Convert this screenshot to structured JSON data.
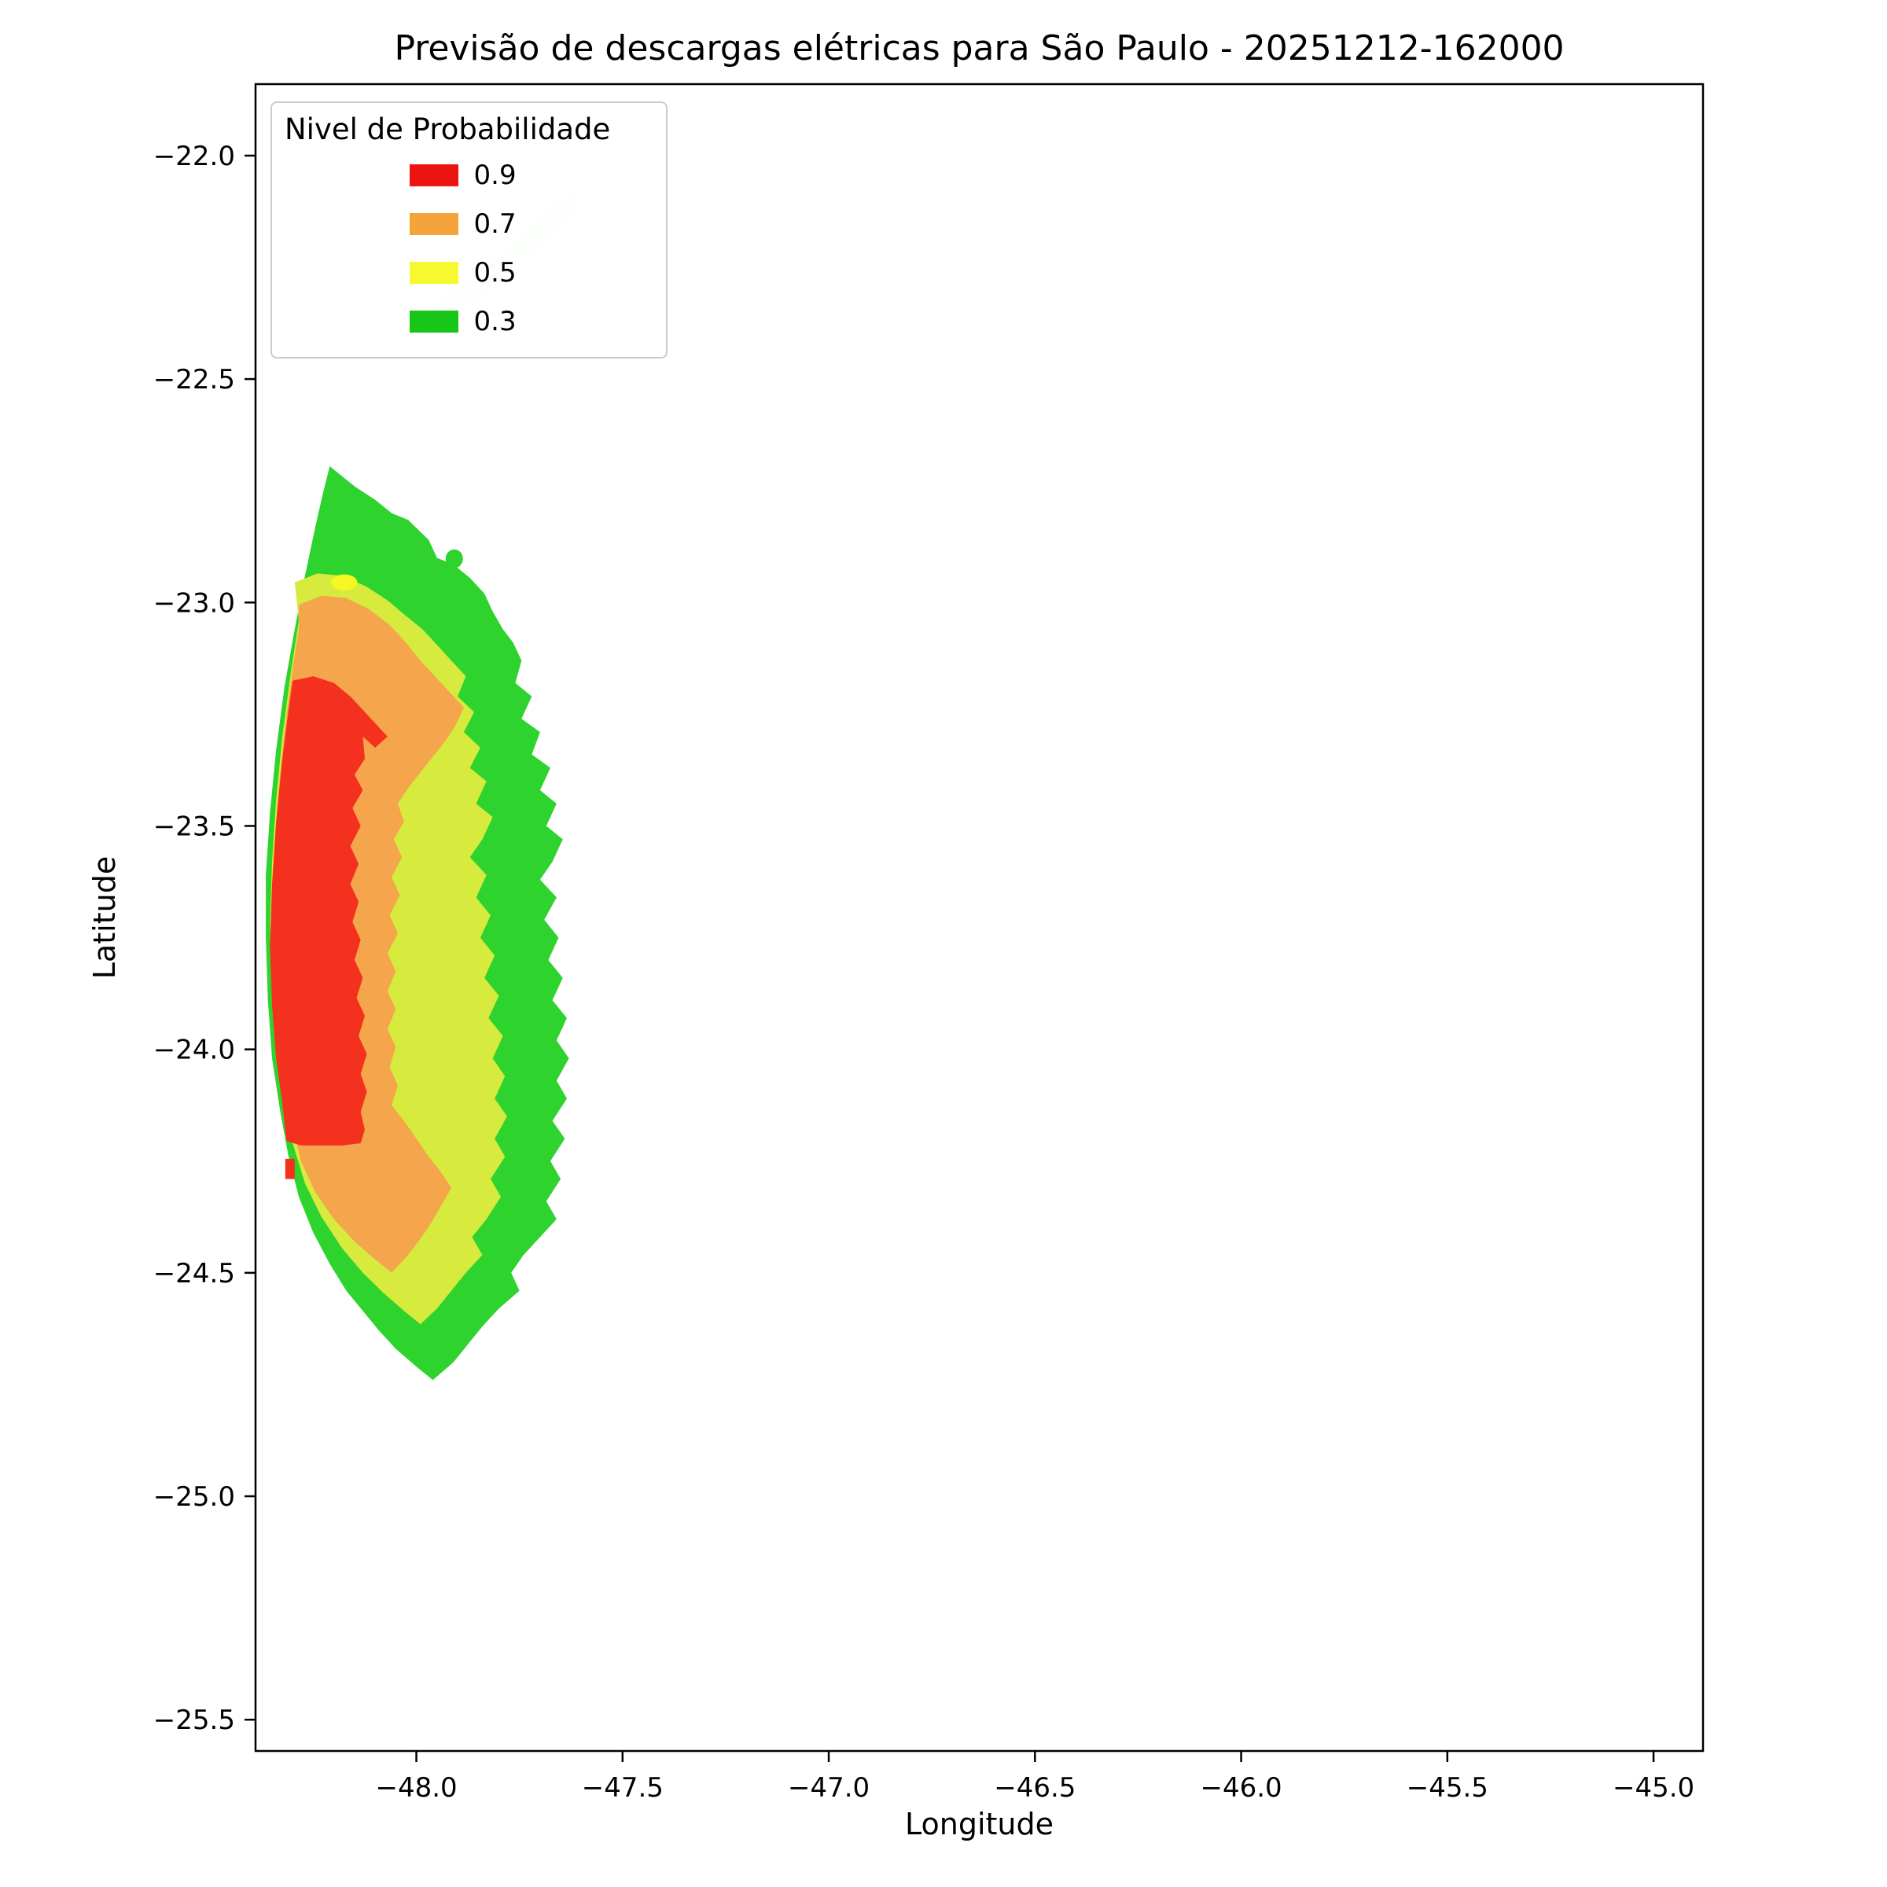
{
  "title": "Previsão de descargas elétricas para São Paulo - 20251212-162000",
  "axes": {
    "xlabel": "Longitude",
    "ylabel": "Latitude"
  },
  "legend": {
    "title": "Nivel de Probabilidade",
    "entries": [
      {
        "label": "0.9",
        "color": "#ec1410"
      },
      {
        "label": "0.7",
        "color": "#f7a33b"
      },
      {
        "label": "0.5",
        "color": "#f8f831"
      },
      {
        "label": "0.3",
        "color": "#17c617"
      }
    ]
  },
  "chart_data": {
    "type": "heatmap",
    "subtype": "filled-contour-probability-map",
    "title": "Previsão de descargas elétricas para São Paulo - 20251212-162000",
    "xlabel": "Longitude",
    "ylabel": "Latitude",
    "grid": false,
    "legend_position": "upper left",
    "xlim": [
      -48.39,
      -44.88
    ],
    "ylim": [
      -25.57,
      -21.84
    ],
    "xticks": [
      -48.0,
      -47.5,
      -47.0,
      -46.5,
      -46.0,
      -45.5,
      -45.0
    ],
    "xtick_labels": [
      "−48.0",
      "−47.5",
      "−47.0",
      "−46.5",
      "−46.0",
      "−45.5",
      "−45.0"
    ],
    "yticks": [
      -22.0,
      -22.5,
      -23.0,
      -23.5,
      -24.0,
      -24.5,
      -25.0,
      -25.5
    ],
    "ytick_labels": [
      "−22.0",
      "−22.5",
      "−23.0",
      "−23.5",
      "−24.0",
      "−24.5",
      "−25.0",
      "−25.5"
    ],
    "levels": [
      0.3,
      0.5,
      0.7,
      0.9
    ],
    "regions": [
      {
        "name": "faint-outlier-patch",
        "level": 0.3,
        "color": "#7ddc7d",
        "opacity": 0.28,
        "shape": "polygon",
        "points": [
          [
            -47.985,
            -22.355
          ],
          [
            -47.9,
            -22.295
          ],
          [
            -47.815,
            -22.235
          ],
          [
            -47.73,
            -22.165
          ],
          [
            -47.655,
            -22.105
          ],
          [
            -47.61,
            -22.075
          ],
          [
            -47.625,
            -22.13
          ],
          [
            -47.69,
            -22.19
          ],
          [
            -47.77,
            -22.255
          ],
          [
            -47.855,
            -22.32
          ],
          [
            -47.94,
            -22.385
          ],
          [
            -47.975,
            -22.4
          ]
        ]
      },
      {
        "name": "region-level-0-3",
        "level": 0.3,
        "color": "#2ed32e",
        "opacity": 1,
        "shape": "polygon",
        "points": [
          [
            -48.21,
            -22.695
          ],
          [
            -48.15,
            -22.74
          ],
          [
            -48.1,
            -22.77
          ],
          [
            -48.06,
            -22.8
          ],
          [
            -48.02,
            -22.815
          ],
          [
            -47.97,
            -22.86
          ],
          [
            -47.95,
            -22.9
          ],
          [
            -47.91,
            -22.915
          ],
          [
            -47.87,
            -22.945
          ],
          [
            -47.835,
            -22.98
          ],
          [
            -47.815,
            -23.02
          ],
          [
            -47.79,
            -23.06
          ],
          [
            -47.765,
            -23.09
          ],
          [
            -47.745,
            -23.13
          ],
          [
            -47.76,
            -23.18
          ],
          [
            -47.72,
            -23.21
          ],
          [
            -47.745,
            -23.26
          ],
          [
            -47.7,
            -23.29
          ],
          [
            -47.72,
            -23.34
          ],
          [
            -47.675,
            -23.37
          ],
          [
            -47.7,
            -23.42
          ],
          [
            -47.66,
            -23.45
          ],
          [
            -47.685,
            -23.5
          ],
          [
            -47.645,
            -23.53
          ],
          [
            -47.67,
            -23.58
          ],
          [
            -47.7,
            -23.62
          ],
          [
            -47.66,
            -23.66
          ],
          [
            -47.69,
            -23.71
          ],
          [
            -47.655,
            -23.75
          ],
          [
            -47.68,
            -23.8
          ],
          [
            -47.645,
            -23.84
          ],
          [
            -47.67,
            -23.89
          ],
          [
            -47.635,
            -23.93
          ],
          [
            -47.66,
            -23.98
          ],
          [
            -47.63,
            -24.02
          ],
          [
            -47.66,
            -24.07
          ],
          [
            -47.635,
            -24.11
          ],
          [
            -47.67,
            -24.16
          ],
          [
            -47.64,
            -24.2
          ],
          [
            -47.675,
            -24.25
          ],
          [
            -47.65,
            -24.29
          ],
          [
            -47.685,
            -24.34
          ],
          [
            -47.66,
            -24.38
          ],
          [
            -47.7,
            -24.42
          ],
          [
            -47.74,
            -24.46
          ],
          [
            -47.77,
            -24.5
          ],
          [
            -47.75,
            -24.54
          ],
          [
            -47.8,
            -24.58
          ],
          [
            -47.84,
            -24.62
          ],
          [
            -47.875,
            -24.66
          ],
          [
            -47.91,
            -24.7
          ],
          [
            -47.96,
            -24.74
          ],
          [
            -48.0,
            -24.71
          ],
          [
            -48.05,
            -24.67
          ],
          [
            -48.09,
            -24.63
          ],
          [
            -48.13,
            -24.585
          ],
          [
            -48.17,
            -24.54
          ],
          [
            -48.21,
            -24.48
          ],
          [
            -48.25,
            -24.41
          ],
          [
            -48.285,
            -24.33
          ],
          [
            -48.31,
            -24.24
          ],
          [
            -48.33,
            -24.14
          ],
          [
            -48.35,
            -24.02
          ],
          [
            -48.36,
            -23.89
          ],
          [
            -48.365,
            -23.75
          ],
          [
            -48.365,
            -23.61
          ],
          [
            -48.355,
            -23.47
          ],
          [
            -48.34,
            -23.33
          ],
          [
            -48.32,
            -23.19
          ],
          [
            -48.295,
            -23.06
          ],
          [
            -48.27,
            -22.94
          ],
          [
            -48.245,
            -22.83
          ],
          [
            -48.225,
            -22.75
          ]
        ]
      },
      {
        "name": "region-level-0-5",
        "level": 0.5,
        "color": "#d7ea3e",
        "opacity": 1,
        "shape": "polygon",
        "points": [
          [
            -48.295,
            -22.955
          ],
          [
            -48.24,
            -22.935
          ],
          [
            -48.18,
            -22.94
          ],
          [
            -48.12,
            -22.965
          ],
          [
            -48.07,
            -22.995
          ],
          [
            -48.025,
            -23.03
          ],
          [
            -47.985,
            -23.06
          ],
          [
            -47.95,
            -23.095
          ],
          [
            -47.915,
            -23.13
          ],
          [
            -47.88,
            -23.165
          ],
          [
            -47.9,
            -23.21
          ],
          [
            -47.86,
            -23.245
          ],
          [
            -47.885,
            -23.29
          ],
          [
            -47.845,
            -23.325
          ],
          [
            -47.87,
            -23.37
          ],
          [
            -47.83,
            -23.4
          ],
          [
            -47.855,
            -23.45
          ],
          [
            -47.815,
            -23.48
          ],
          [
            -47.84,
            -23.53
          ],
          [
            -47.87,
            -23.57
          ],
          [
            -47.83,
            -23.61
          ],
          [
            -47.855,
            -23.66
          ],
          [
            -47.82,
            -23.7
          ],
          [
            -47.845,
            -23.75
          ],
          [
            -47.81,
            -23.79
          ],
          [
            -47.835,
            -23.84
          ],
          [
            -47.8,
            -23.88
          ],
          [
            -47.825,
            -23.93
          ],
          [
            -47.79,
            -23.97
          ],
          [
            -47.815,
            -24.02
          ],
          [
            -47.785,
            -24.06
          ],
          [
            -47.81,
            -24.11
          ],
          [
            -47.78,
            -24.15
          ],
          [
            -47.81,
            -24.2
          ],
          [
            -47.785,
            -24.24
          ],
          [
            -47.82,
            -24.29
          ],
          [
            -47.795,
            -24.33
          ],
          [
            -47.83,
            -24.38
          ],
          [
            -47.865,
            -24.42
          ],
          [
            -47.84,
            -24.46
          ],
          [
            -47.88,
            -24.5
          ],
          [
            -47.915,
            -24.54
          ],
          [
            -47.95,
            -24.58
          ],
          [
            -47.99,
            -24.615
          ],
          [
            -48.03,
            -24.585
          ],
          [
            -48.08,
            -24.545
          ],
          [
            -48.13,
            -24.5
          ],
          [
            -48.18,
            -24.445
          ],
          [
            -48.23,
            -24.375
          ],
          [
            -48.27,
            -24.3
          ],
          [
            -48.3,
            -24.21
          ],
          [
            -48.32,
            -24.11
          ],
          [
            -48.34,
            -23.99
          ],
          [
            -48.35,
            -23.86
          ],
          [
            -48.355,
            -23.72
          ],
          [
            -48.35,
            -23.58
          ],
          [
            -48.34,
            -23.44
          ],
          [
            -48.325,
            -23.3
          ],
          [
            -48.305,
            -23.16
          ],
          [
            -48.285,
            -23.04
          ]
        ]
      },
      {
        "name": "region-level-0-7",
        "level": 0.7,
        "color": "#f5a54b",
        "opacity": 1,
        "shape": "polygon",
        "points": [
          [
            -48.285,
            -23.005
          ],
          [
            -48.23,
            -22.985
          ],
          [
            -48.17,
            -22.99
          ],
          [
            -48.115,
            -23.015
          ],
          [
            -48.065,
            -23.05
          ],
          [
            -48.025,
            -23.09
          ],
          [
            -47.99,
            -23.13
          ],
          [
            -47.955,
            -23.165
          ],
          [
            -47.92,
            -23.2
          ],
          [
            -47.885,
            -23.235
          ],
          [
            -47.905,
            -23.275
          ],
          [
            -47.93,
            -23.31
          ],
          [
            -47.96,
            -23.345
          ],
          [
            -47.99,
            -23.38
          ],
          [
            -48.02,
            -23.415
          ],
          [
            -48.045,
            -23.45
          ],
          [
            -48.03,
            -23.49
          ],
          [
            -48.055,
            -23.53
          ],
          [
            -48.035,
            -23.57
          ],
          [
            -48.06,
            -23.615
          ],
          [
            -48.04,
            -23.655
          ],
          [
            -48.065,
            -23.7
          ],
          [
            -48.045,
            -23.74
          ],
          [
            -48.07,
            -23.785
          ],
          [
            -48.05,
            -23.825
          ],
          [
            -48.07,
            -23.87
          ],
          [
            -48.05,
            -23.91
          ],
          [
            -48.07,
            -23.955
          ],
          [
            -48.05,
            -23.995
          ],
          [
            -48.065,
            -24.04
          ],
          [
            -48.045,
            -24.08
          ],
          [
            -48.06,
            -24.125
          ],
          [
            -48.03,
            -24.16
          ],
          [
            -48.0,
            -24.2
          ],
          [
            -47.97,
            -24.24
          ],
          [
            -47.94,
            -24.275
          ],
          [
            -47.915,
            -24.31
          ],
          [
            -47.94,
            -24.35
          ],
          [
            -47.965,
            -24.39
          ],
          [
            -47.995,
            -24.43
          ],
          [
            -48.025,
            -24.465
          ],
          [
            -48.06,
            -24.5
          ],
          [
            -48.1,
            -24.47
          ],
          [
            -48.15,
            -24.43
          ],
          [
            -48.2,
            -24.38
          ],
          [
            -48.245,
            -24.32
          ],
          [
            -48.28,
            -24.25
          ],
          [
            -48.3,
            -24.17
          ],
          [
            -48.32,
            -24.07
          ],
          [
            -48.335,
            -23.96
          ],
          [
            -48.345,
            -23.84
          ],
          [
            -48.35,
            -23.71
          ],
          [
            -48.345,
            -23.57
          ],
          [
            -48.335,
            -23.43
          ],
          [
            -48.32,
            -23.29
          ],
          [
            -48.3,
            -23.15
          ],
          [
            -48.285,
            -23.06
          ]
        ]
      },
      {
        "name": "region-level-0-9",
        "level": 0.9,
        "color": "#f4301e",
        "opacity": 1,
        "shape": "polygon",
        "points": [
          [
            -48.3,
            -23.175
          ],
          [
            -48.25,
            -23.165
          ],
          [
            -48.2,
            -23.18
          ],
          [
            -48.16,
            -23.21
          ],
          [
            -48.125,
            -23.245
          ],
          [
            -48.095,
            -23.275
          ],
          [
            -48.07,
            -23.3
          ],
          [
            -48.1,
            -23.325
          ],
          [
            -48.13,
            -23.3
          ],
          [
            -48.125,
            -23.35
          ],
          [
            -48.15,
            -23.385
          ],
          [
            -48.13,
            -23.42
          ],
          [
            -48.155,
            -23.46
          ],
          [
            -48.135,
            -23.5
          ],
          [
            -48.16,
            -23.545
          ],
          [
            -48.14,
            -23.585
          ],
          [
            -48.16,
            -23.63
          ],
          [
            -48.14,
            -23.67
          ],
          [
            -48.155,
            -23.715
          ],
          [
            -48.135,
            -23.755
          ],
          [
            -48.15,
            -23.8
          ],
          [
            -48.13,
            -23.84
          ],
          [
            -48.145,
            -23.885
          ],
          [
            -48.125,
            -23.925
          ],
          [
            -48.14,
            -23.97
          ],
          [
            -48.12,
            -24.01
          ],
          [
            -48.135,
            -24.055
          ],
          [
            -48.12,
            -24.095
          ],
          [
            -48.135,
            -24.14
          ],
          [
            -48.125,
            -24.18
          ],
          [
            -48.135,
            -24.21
          ],
          [
            -48.18,
            -24.215
          ],
          [
            -48.23,
            -24.215
          ],
          [
            -48.28,
            -24.215
          ],
          [
            -48.315,
            -24.205
          ],
          [
            -48.325,
            -24.12
          ],
          [
            -48.34,
            -24.02
          ],
          [
            -48.35,
            -23.9
          ],
          [
            -48.355,
            -23.77
          ],
          [
            -48.35,
            -23.63
          ],
          [
            -48.34,
            -23.49
          ],
          [
            -48.325,
            -23.35
          ],
          [
            -48.31,
            -23.24
          ]
        ]
      },
      {
        "name": "region-level-0-9-south-fragment",
        "level": 0.9,
        "color": "#f4301e",
        "opacity": 1,
        "shape": "polygon",
        "points": [
          [
            -48.318,
            -24.245
          ],
          [
            -48.295,
            -24.245
          ],
          [
            -48.295,
            -24.29
          ],
          [
            -48.318,
            -24.29
          ]
        ]
      },
      {
        "name": "yellow-spot",
        "level": 0.5,
        "color": "#f6f620",
        "opacity": 1,
        "shape": "ellipse",
        "center": [
          -48.175,
          -22.955
        ],
        "rx": 0.032,
        "ry": 0.018
      },
      {
        "name": "green-spot",
        "level": 0.3,
        "color": "#2ed32e",
        "opacity": 1,
        "shape": "ellipse",
        "center": [
          -47.908,
          -22.902
        ],
        "rx": 0.021,
        "ry": 0.021
      }
    ]
  }
}
